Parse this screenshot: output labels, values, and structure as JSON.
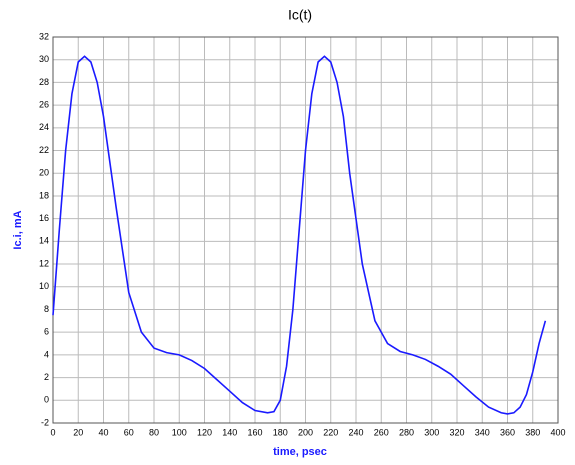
{
  "chart_data": {
    "type": "line",
    "title": "Ic(t)",
    "x_label": "time, psec",
    "y_label": "Ic.i, mA",
    "x": [
      0,
      5,
      10,
      15,
      20,
      25,
      30,
      35,
      40,
      50,
      60,
      70,
      80,
      90,
      100,
      110,
      120,
      130,
      140,
      150,
      160,
      170,
      175,
      180,
      185,
      190,
      195,
      200,
      205,
      210,
      215,
      220,
      225,
      230,
      235,
      245,
      255,
      265,
      275,
      285,
      295,
      305,
      315,
      325,
      335,
      345,
      355,
      360,
      365,
      370,
      375,
      380,
      385,
      390
    ],
    "series": [
      {
        "name": "Ic.i",
        "color": "#1a1aff",
        "values": [
          7.5,
          15,
          22,
          27,
          29.8,
          30.3,
          29.8,
          28,
          25,
          17,
          9.5,
          6,
          4.6,
          4.2,
          4,
          3.5,
          2.8,
          1.8,
          0.8,
          -0.2,
          -0.9,
          -1.1,
          -1,
          0,
          3,
          8,
          15,
          22,
          27,
          29.8,
          30.3,
          29.8,
          28,
          25,
          20,
          12,
          7,
          5,
          4.3,
          4,
          3.6,
          3,
          2.3,
          1.3,
          0.3,
          -0.6,
          -1.1,
          -1.2,
          -1.1,
          -0.6,
          0.5,
          2.5,
          5,
          7
        ]
      }
    ],
    "xlim": [
      0,
      400
    ],
    "xticks": [
      0,
      20,
      40,
      60,
      80,
      100,
      120,
      140,
      160,
      180,
      200,
      220,
      240,
      260,
      280,
      300,
      320,
      340,
      360,
      380,
      400
    ],
    "ylim": [
      -2,
      32
    ],
    "yticks": [
      -2,
      0,
      2,
      4,
      6,
      8,
      10,
      12,
      14,
      16,
      18,
      20,
      22,
      24,
      26,
      28,
      30,
      32
    ],
    "grid": true
  }
}
